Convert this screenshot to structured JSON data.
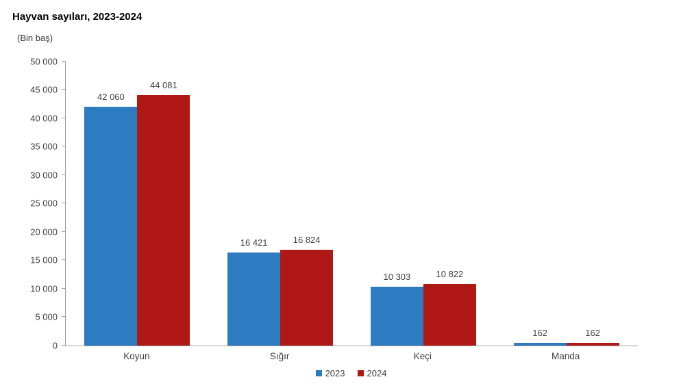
{
  "title": "Hayvan sayıları, 2023-2024",
  "subtitle": "(Bin baş)",
  "colors": {
    "series_2023": "#2D7CC1",
    "series_2024": "#B01816",
    "axis_line": "#9c9c9c",
    "label_text": "#3f3f3f",
    "title_text": "#000000"
  },
  "chart_data": {
    "type": "bar",
    "title": "Hayvan sayıları, 2023-2024",
    "unit_label": "(Bin baş)",
    "categories": [
      "Koyun",
      "Sığır",
      "Keçi",
      "Manda"
    ],
    "series": [
      {
        "name": "2023",
        "color": "#2D7CC1",
        "values": [
          42060,
          16421,
          10303,
          162
        ]
      },
      {
        "name": "2024",
        "color": "#B01816",
        "values": [
          44081,
          16824,
          10822,
          162
        ]
      }
    ],
    "ylim": [
      0,
      50000
    ],
    "yticks": [
      0,
      5000,
      10000,
      15000,
      20000,
      25000,
      30000,
      35000,
      40000,
      45000,
      50000
    ],
    "grid": false,
    "value_labels": true,
    "number_format": "space-thousands",
    "legend_position": "bottom-center",
    "legend_labels": [
      "2023",
      "2024"
    ]
  }
}
